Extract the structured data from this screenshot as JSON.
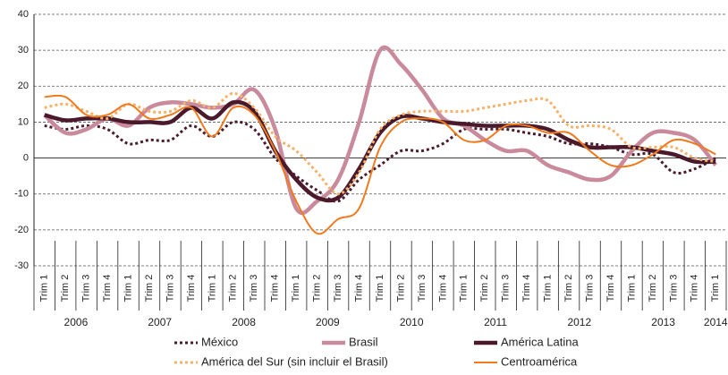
{
  "chart_data": {
    "type": "line",
    "categories": [
      "Trim 1",
      "Trim 2",
      "Trim 3",
      "Trim 4",
      "Trim 1",
      "Trim 2",
      "Trim 3",
      "Trim 4",
      "Trim 1",
      "Trim 2",
      "Trim 3",
      "Trim 4",
      "Trim 1",
      "Trim 2",
      "Trim 3",
      "Trim 4",
      "Trim 1",
      "Trim 2",
      "Trim 3",
      "Trim 4",
      "Trim 1",
      "Trim 2",
      "Trim 3",
      "Trim 4",
      "Trim 1",
      "Trim 2",
      "Trim 3",
      "Trim 4",
      "Trim 1",
      "Trim 2",
      "Trim 3",
      "Trim 4",
      "Trim 1"
    ],
    "category_groups": [
      "2006",
      "2007",
      "2008",
      "2009",
      "2010",
      "2011",
      "2012",
      "2013",
      "2014"
    ],
    "ylim": [
      -30,
      40
    ],
    "yticks": [
      -30,
      -20,
      -10,
      0,
      10,
      20,
      30,
      40
    ],
    "grid": true,
    "series": [
      {
        "name": "México",
        "color": "#4a1d2e",
        "style": "dotted",
        "values": [
          9,
          8,
          9,
          8,
          4,
          5,
          5,
          9,
          6,
          10,
          8,
          0,
          -5,
          -9,
          -12,
          -6,
          -2,
          2,
          2,
          4,
          8,
          8,
          8,
          7,
          6,
          4,
          4,
          3,
          1,
          1,
          -4,
          -3,
          0
        ]
      },
      {
        "name": "Brasil",
        "color": "#c98a9c",
        "style": "thick",
        "values": [
          12,
          7,
          8,
          11,
          9,
          14,
          15.5,
          15,
          14,
          15,
          19,
          8,
          -14,
          -12,
          -6,
          10,
          30,
          26,
          19,
          11,
          9,
          5,
          2,
          2,
          -2,
          -4,
          -6,
          -5,
          2,
          7,
          7,
          5,
          -2
        ]
      },
      {
        "name": "América Latina",
        "color": "#4a1a2c",
        "style": "thick",
        "values": [
          12,
          10.5,
          11,
          11,
          10,
          10,
          10,
          14,
          11,
          15.5,
          13,
          2,
          -6,
          -11,
          -11,
          -3,
          7,
          11.5,
          11,
          10,
          9.5,
          9,
          9,
          9,
          8,
          5,
          3,
          3,
          3,
          2,
          1,
          -1,
          -1
        ]
      },
      {
        "name": "América del Sur (sin incluir el Brasil)",
        "color": "#f6b26b",
        "style": "dotted",
        "values": [
          14,
          15,
          13,
          11,
          15,
          13,
          13,
          16,
          14,
          18,
          14,
          6,
          2,
          -4,
          -10,
          -4,
          8,
          12,
          13,
          13,
          13,
          14,
          15,
          16,
          16,
          9,
          9,
          8,
          3,
          3,
          3,
          0,
          -1
        ]
      },
      {
        "name": "Centroamérica",
        "color": "#f07a1e",
        "style": "solid",
        "values": [
          17,
          17,
          12,
          12,
          15,
          11,
          12,
          14,
          6,
          14,
          12,
          2,
          -12,
          -21,
          -17,
          -14,
          3,
          10,
          11,
          10,
          5,
          5,
          9,
          9,
          7,
          7,
          2,
          -2,
          -2,
          1,
          5,
          4,
          1
        ]
      }
    ]
  }
}
